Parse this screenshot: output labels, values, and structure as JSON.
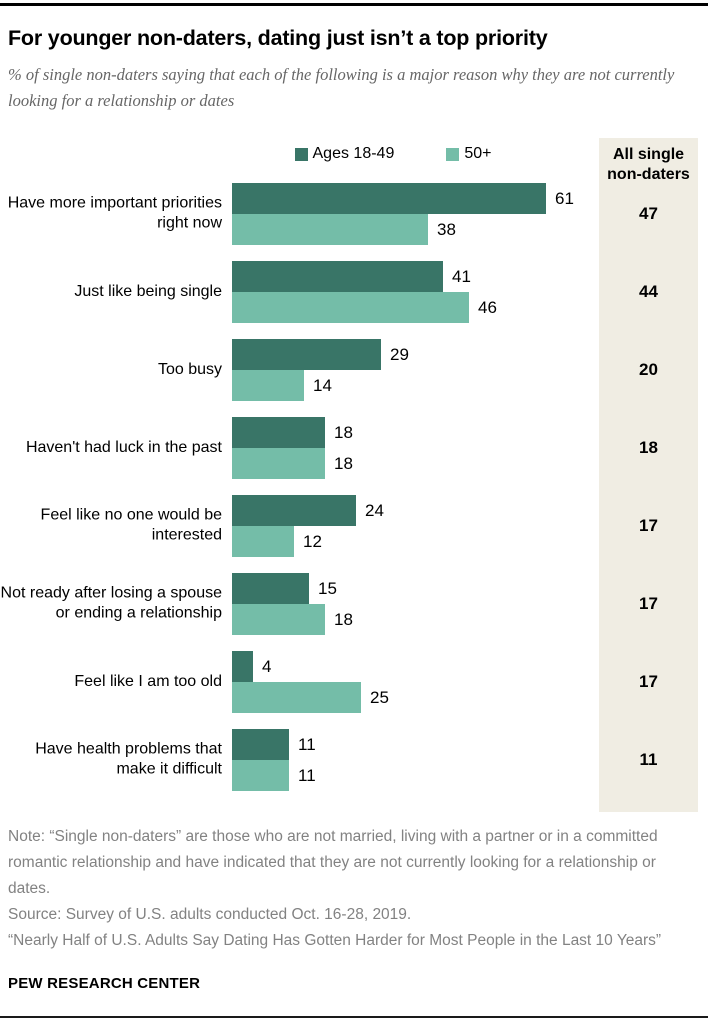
{
  "header": {
    "title": "For younger non-daters, dating just isn’t a top priority",
    "subtitle": "% of single non-daters saying that each of the following is a major reason why they are not currently looking for a relationship or dates"
  },
  "chart_data": {
    "type": "bar",
    "orientation": "horizontal",
    "value_unit": "%",
    "xlim": [
      0,
      65
    ],
    "legend_position": "top",
    "grid": false,
    "categories": [
      "Have more important priorities right now",
      "Just like being single",
      "Too busy",
      "Haven't had luck in the past",
      "Feel like no one would be interested",
      "Not ready after losing a spouse or ending a relationship",
      "Feel like I am too old",
      "Have health problems that make it difficult"
    ],
    "series": [
      {
        "name": "Ages 18-49",
        "color": "#397567",
        "values": [
          61,
          41,
          29,
          18,
          24,
          15,
          4,
          11
        ]
      },
      {
        "name": "50+",
        "color": "#74bda8",
        "values": [
          38,
          46,
          14,
          18,
          12,
          18,
          25,
          11
        ]
      }
    ],
    "all_column": {
      "header": "All single\nnon-daters",
      "background": "#f0ede3",
      "values": [
        47,
        44,
        20,
        18,
        17,
        17,
        17,
        11
      ]
    }
  },
  "notes": {
    "note": "Note: “Single non-daters” are those who are not married, living with a partner or in a committed romantic relationship and have indicated that they are not currently looking for a relationship or dates.",
    "source": "Source: Survey of U.S. adults conducted Oct. 16-28, 2019.",
    "report": "“Nearly Half of U.S. Adults Say Dating Has Gotten Harder for Most People in the Last 10 Years”"
  },
  "footer": {
    "brand": "PEW RESEARCH CENTER"
  }
}
